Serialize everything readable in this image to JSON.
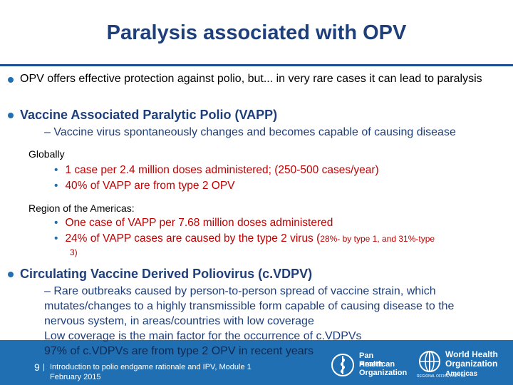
{
  "title": "Paralysis associated with OPV",
  "bullets": {
    "b1": "OPV offers effective protection against polio, but... in very rare cases it can lead to paralysis",
    "b2": "Vaccine Associated Paralytic Polio (VAPP)",
    "b2_dash": "– Vaccine virus spontaneously changes and becomes capable of causing disease",
    "globally": "Globally",
    "g1": "1 case per 2.4 million doses administered; (250-500 cases/year)",
    "g2": "40% of VAPP are from type 2 OPV",
    "americas": "Region of the Americas:",
    "a1": "One case of VAPP per 7.68 million doses administered",
    "a2_main": "24% of VAPP cases are caused by the type 2 virus (",
    "a2_small": "28%- by type 1, and 31%-type",
    "a2_cont": "3)",
    "b3": "Circulating Vaccine Derived Poliovirus (c.VDPV)",
    "b3_dash1": "– Rare outbreaks caused by person-to-person spread of vaccine strain, which",
    "b3_dash2": "mutates/changes to a highly transmissible form capable of causing disease to the",
    "b3_dash3": "nervous system, in areas/countries with low coverage",
    "b3_dash4": "Low coverage is the main factor for the occurrence of c.VDPVs",
    "b3_dash5": "97% of c.VDPVs are from type 2 OPV in recent years"
  },
  "footer": {
    "page": "9",
    "line1": "Introduction to polio endgame rationale and IPV, Module 1",
    "line2": "February 2015",
    "paho": [
      "Pan American",
      "Health",
      "Organization"
    ],
    "who": [
      "World Health",
      "Organization"
    ],
    "who_region": "Americas",
    "who_small": "REGIONAL OFFICE FOR THE"
  },
  "colors": {
    "title": "#1f3f7a",
    "accent": "#1f6fb2",
    "red": "#c00000"
  }
}
